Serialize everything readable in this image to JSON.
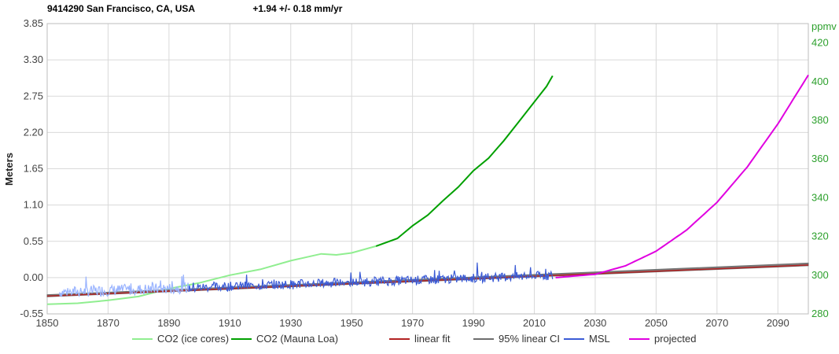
{
  "header": {
    "station": "9414290 San Francisco, CA, USA",
    "rate": "+1.94 +/- 0.18 mm/yr"
  },
  "colors": {
    "co2_ice": "#90ee90",
    "co2_mauna": "#00a000",
    "linear_fit": "#b22222",
    "ci": "#6e6e6e",
    "msl": "#3b5bd6",
    "msl_early": "#9ab4ff",
    "projected": "#e000e0",
    "right_axis": "#2ca02c"
  },
  "chart_data": {
    "type": "line",
    "title": "",
    "ylabel": "Meters",
    "y2label": "ppmv",
    "xlim": [
      1850,
      2100
    ],
    "ylim": [
      -0.55,
      3.85
    ],
    "y2lim": [
      280,
      430
    ],
    "xticks": [
      "1850",
      "1870",
      "1890",
      "1910",
      "1930",
      "1950",
      "1970",
      "1990",
      "2010",
      "2030",
      "2050",
      "2070",
      "2090"
    ],
    "yticks": [
      "-0.55",
      "0.00",
      "0.55",
      "1.10",
      "1.65",
      "2.20",
      "2.75",
      "3.30",
      "3.85"
    ],
    "y2ticks": [
      "280",
      "300",
      "320",
      "340",
      "360",
      "380",
      "400",
      "420",
      "ppmv"
    ],
    "grid": true,
    "legend_position": "bottom",
    "legend": [
      "CO2 (ice cores)",
      "CO2 (Mauna Loa)",
      "linear fit",
      "95% linear CI",
      "MSL",
      "projected"
    ],
    "series": [
      {
        "name": "CO2 (ice cores)",
        "axis": "right",
        "x": [
          1850,
          1860,
          1870,
          1880,
          1890,
          1900,
          1910,
          1920,
          1930,
          1940,
          1945,
          1950,
          1958
        ],
        "values": [
          285,
          285.5,
          287,
          289,
          293,
          296,
          300,
          303,
          307.5,
          311,
          310.5,
          311.5,
          315
        ]
      },
      {
        "name": "CO2 (Mauna Loa)",
        "axis": "right",
        "x": [
          1958,
          1965,
          1970,
          1975,
          1980,
          1985,
          1990,
          1995,
          2000,
          2005,
          2010,
          2014,
          2016
        ],
        "values": [
          315,
          319,
          325.5,
          331,
          338.5,
          345.5,
          354,
          360.5,
          369.5,
          379.5,
          389.5,
          397.5,
          403
        ]
      },
      {
        "name": "linear fit",
        "axis": "left",
        "x": [
          1850,
          2100
        ],
        "values": [
          -0.28,
          0.19
        ]
      },
      {
        "name": "95% linear CI",
        "axis": "left",
        "x": [
          1850,
          2100
        ],
        "values_low": [
          -0.29,
          0.18
        ],
        "values_high": [
          -0.26,
          0.22
        ]
      },
      {
        "name": "MSL",
        "axis": "left",
        "x": [
          1854,
          2016
        ],
        "values": [
          -0.21,
          0.02
        ]
      },
      {
        "name": "projected",
        "axis": "left",
        "x": [
          2017,
          2030,
          2040,
          2050,
          2060,
          2070,
          2080,
          2090,
          2100
        ],
        "values": [
          0.0,
          0.05,
          0.18,
          0.4,
          0.72,
          1.14,
          1.68,
          2.33,
          3.07
        ]
      }
    ]
  }
}
